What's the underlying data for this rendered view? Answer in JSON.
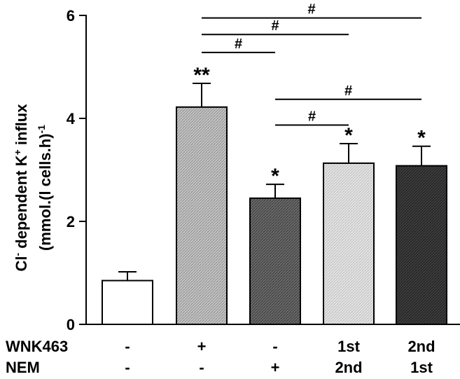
{
  "chart_data": {
    "type": "bar",
    "title": "",
    "ylabel": {
      "line1_parts": [
        "Cl",
        "-",
        " dependent K",
        "+",
        " influx"
      ],
      "line2_parts": [
        "(mmol.(l cells.h)",
        "-1"
      ]
    },
    "ylim": [
      0,
      6
    ],
    "yticks": [
      "0",
      "2",
      "4",
      "6"
    ],
    "ytick_values": [
      0,
      2,
      4,
      6
    ],
    "bars": [
      {
        "value": 0.85,
        "error": 0.17,
        "marker": "",
        "fill": "white"
      },
      {
        "value": 4.22,
        "error": 0.46,
        "marker": "**",
        "fill": "gray-light"
      },
      {
        "value": 2.45,
        "error": 0.27,
        "marker": "*",
        "fill": "gray-dark"
      },
      {
        "value": 3.13,
        "error": 0.38,
        "marker": "*",
        "fill": "gray-lightest"
      },
      {
        "value": 3.08,
        "error": 0.38,
        "marker": "*",
        "fill": "gray-darkest"
      }
    ],
    "conditions": [
      {
        "name": "WNK463",
        "values": [
          "-",
          "+",
          "-",
          "1st",
          "2nd"
        ]
      },
      {
        "name": "NEM",
        "values": [
          "-",
          "-",
          "+",
          "2nd",
          "1st"
        ]
      }
    ],
    "significance": [
      {
        "from": 1,
        "to": 4,
        "label": "#",
        "level": 5.95
      },
      {
        "from": 1,
        "to": 3,
        "label": "#",
        "level": 5.63
      },
      {
        "from": 1,
        "to": 2,
        "label": "#",
        "level": 5.28
      },
      {
        "from": 2,
        "to": 4,
        "label": "#",
        "level": 4.37
      },
      {
        "from": 2,
        "to": 3,
        "label": "#",
        "level": 3.87
      }
    ]
  }
}
